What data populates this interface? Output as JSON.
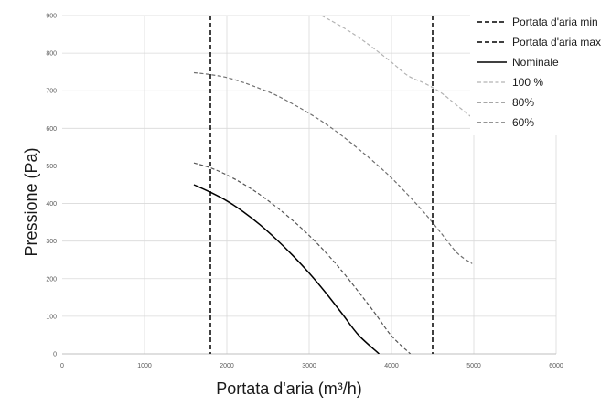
{
  "chart_data": {
    "type": "line",
    "xlabel": "Portata d'aria (m³/h)",
    "ylabel": "Pressione (Pa)",
    "xlim": [
      0,
      6000
    ],
    "ylim": [
      0,
      900
    ],
    "x_ticks": [
      0,
      1000,
      2000,
      3000,
      4000,
      5000,
      6000
    ],
    "y_ticks": [
      0,
      100,
      200,
      300,
      400,
      500,
      600,
      700,
      800,
      900
    ],
    "x_tick_labels": [
      "0",
      "1000",
      "2000",
      "3000",
      "4000",
      "5000",
      "6000"
    ],
    "y_tick_labels": [
      "0",
      "100",
      "200",
      "300",
      "400",
      "500",
      "600",
      "700",
      "800",
      "900"
    ],
    "grid": true,
    "legend_position": "top-right",
    "vertical_lines": [
      {
        "name": "Portata d'aria min",
        "x": 1800,
        "color": "#000000",
        "dash": "dashed"
      },
      {
        "name": "Portata d'aria max",
        "x": 4500,
        "color": "#000000",
        "dash": "dashed"
      }
    ],
    "series": [
      {
        "name": "Nominale",
        "color": "#000000",
        "dash": "solid",
        "points": [
          [
            1600,
            450
          ],
          [
            1800,
            430
          ],
          [
            2000,
            407
          ],
          [
            2200,
            378
          ],
          [
            2400,
            344
          ],
          [
            2600,
            305
          ],
          [
            2800,
            262
          ],
          [
            3000,
            215
          ],
          [
            3200,
            163
          ],
          [
            3400,
            107
          ],
          [
            3600,
            50
          ],
          [
            3850,
            0
          ]
        ]
      },
      {
        "name": "100 %",
        "color": "#b3b3b3",
        "dash": "dashed",
        "points": [
          [
            3150,
            900
          ],
          [
            3400,
            870
          ],
          [
            3600,
            842
          ],
          [
            3800,
            810
          ],
          [
            4000,
            776
          ],
          [
            4200,
            740
          ],
          [
            4400,
            720
          ],
          [
            4600,
            695
          ],
          [
            4800,
            660
          ],
          [
            5000,
            625
          ]
        ]
      },
      {
        "name": "80%",
        "color": "#707070",
        "dash": "dashed",
        "points": [
          [
            1600,
            748
          ],
          [
            1800,
            743
          ],
          [
            2000,
            735
          ],
          [
            2200,
            722
          ],
          [
            2400,
            706
          ],
          [
            2600,
            688
          ],
          [
            2800,
            665
          ],
          [
            3000,
            640
          ],
          [
            3200,
            612
          ],
          [
            3400,
            580
          ],
          [
            3600,
            545
          ],
          [
            3800,
            508
          ],
          [
            4000,
            468
          ],
          [
            4200,
            423
          ],
          [
            4400,
            375
          ],
          [
            4600,
            322
          ],
          [
            4800,
            268
          ],
          [
            4980,
            240
          ]
        ]
      },
      {
        "name": "60%",
        "color": "#555555",
        "dash": "dashed",
        "points": [
          [
            1600,
            508
          ],
          [
            1800,
            495
          ],
          [
            2000,
            476
          ],
          [
            2200,
            452
          ],
          [
            2400,
            424
          ],
          [
            2600,
            391
          ],
          [
            2800,
            355
          ],
          [
            3000,
            315
          ],
          [
            3200,
            270
          ],
          [
            3400,
            220
          ],
          [
            3600,
            165
          ],
          [
            3800,
            108
          ],
          [
            4000,
            48
          ],
          [
            4230,
            0
          ]
        ]
      }
    ]
  }
}
